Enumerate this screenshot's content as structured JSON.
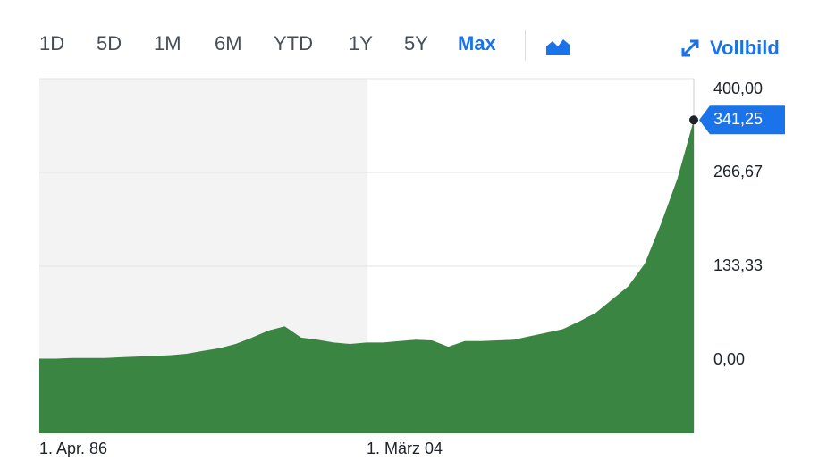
{
  "toolbar": {
    "ranges": [
      "1D",
      "5D",
      "1M",
      "6M",
      "YTD",
      "1Y",
      "5Y",
      "Max"
    ],
    "fullscreen": "Vollbild"
  },
  "chart_data": {
    "type": "area",
    "color": "#3b8542",
    "categories": [
      "1. Apr. 86",
      null,
      null,
      null,
      null,
      null,
      null,
      null,
      null,
      null,
      null,
      null,
      null,
      null,
      null,
      null,
      null,
      null,
      null,
      null,
      "1. März 04",
      null,
      null,
      null,
      null,
      null,
      null,
      null,
      null,
      null,
      null,
      null,
      null,
      null,
      null,
      null,
      null,
      null,
      null,
      null,
      null
    ],
    "values": [
      2,
      2,
      3,
      3,
      3,
      4,
      5,
      6,
      7,
      9,
      13,
      17,
      23,
      32,
      42,
      48,
      32,
      29,
      25,
      23,
      25,
      25,
      27,
      29,
      28,
      19,
      27,
      27,
      28,
      29,
      34,
      39,
      44,
      55,
      67,
      86,
      105,
      137,
      194,
      258,
      341.25
    ],
    "value_labels": [
      null,
      null,
      null,
      null,
      null,
      null,
      null,
      null,
      null,
      null,
      null,
      null,
      null,
      null,
      null,
      null,
      null,
      null,
      null,
      null,
      null,
      null,
      null,
      null,
      null,
      null,
      null,
      null,
      null,
      null,
      null,
      null,
      null,
      null,
      null,
      null,
      null,
      null,
      null,
      null,
      "341,25"
    ],
    "ylim": [
      -104,
      400
    ],
    "yticks": [
      {
        "value": 0,
        "label": "0,00"
      },
      {
        "value": 133.33,
        "label": "133,33"
      },
      {
        "value": 266.67,
        "label": "266,67"
      },
      {
        "value": 400,
        "label": "400,00"
      }
    ],
    "grid": true
  }
}
